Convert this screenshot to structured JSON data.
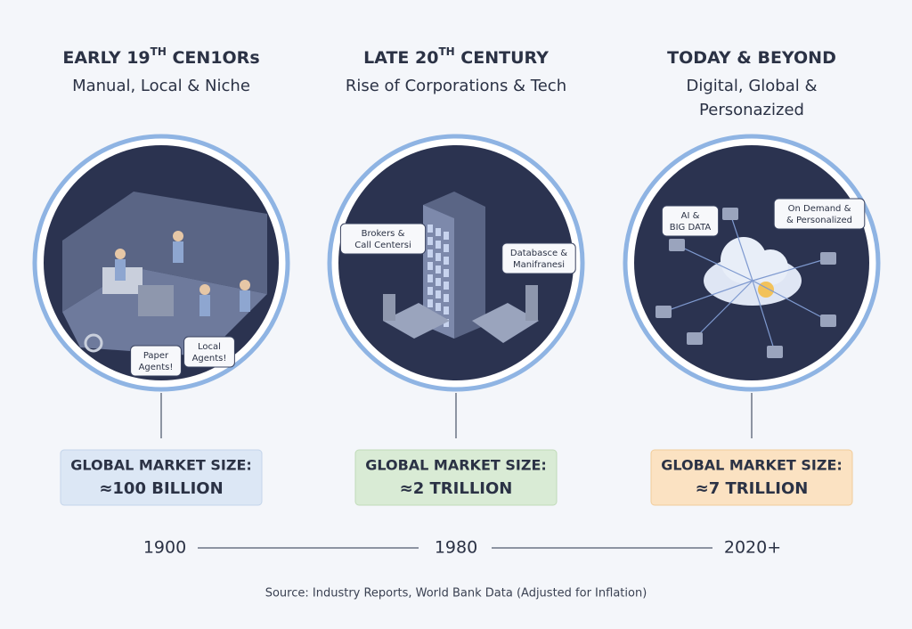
{
  "eras": [
    {
      "title": {
        "pre": "EARLY 19",
        "sup": "TH",
        "post": " CEN1ORs"
      },
      "subtitle": [
        "Manual, Local & Niche"
      ],
      "bubbles": [
        [
          "Paper",
          "Agents!"
        ],
        [
          "Local",
          "Agents!"
        ]
      ],
      "market_label": "GLOBAL MARKET SIZE:",
      "market_value": "≈100 BILLION",
      "year": "1900"
    },
    {
      "title": {
        "pre": "LATE 20",
        "sup": "TH",
        "post": " CENTURY"
      },
      "subtitle": [
        "Rise of Corporations & Tech"
      ],
      "bubbles": [
        [
          "Brokers &",
          "Call Centersi"
        ],
        [
          "Databasce &",
          "Manifranesi"
        ]
      ],
      "market_label": "GLOBAL MARKET SIZE:",
      "market_value": "≈2 TRILLION",
      "year": "1980"
    },
    {
      "title": {
        "pre": "TODAY & BEYOND",
        "sup": "",
        "post": ""
      },
      "subtitle": [
        "Digital, Global &",
        "Personazized"
      ],
      "bubbles": [
        [
          "AI &",
          "BIG DATA"
        ],
        [
          "On Demand &",
          "& Personalized"
        ]
      ],
      "market_label": "GLOBAL MARKET SIZE:",
      "market_value": "≈7 TRILLION",
      "year": "2020+"
    }
  ],
  "source": "Source: Industry Reports, World Bank Data (Adjusted for Inflation)"
}
